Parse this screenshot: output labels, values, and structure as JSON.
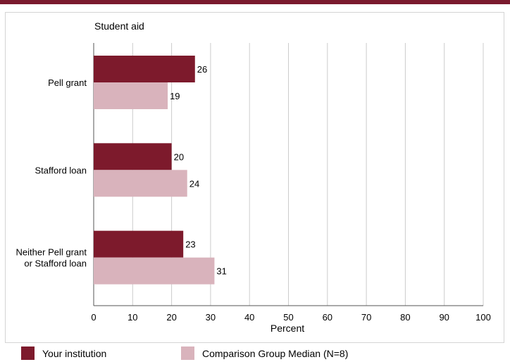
{
  "chart_data": {
    "type": "bar",
    "orientation": "horizontal",
    "title": "Student aid",
    "xlabel": "Percent",
    "ylabel": "",
    "xlim": [
      0,
      100
    ],
    "xticks": [
      "0",
      "10",
      "20",
      "30",
      "40",
      "50",
      "60",
      "70",
      "80",
      "90",
      "100"
    ],
    "grid": true,
    "categories": [
      "Pell grant",
      "Stafford loan",
      "Neither Pell grant\nor Stafford loan"
    ],
    "series": [
      {
        "name": "Your institution",
        "color": "#7d1a2c",
        "values": [
          26,
          20,
          23
        ]
      },
      {
        "name": "Comparison Group Median (N=8)",
        "color": "#d9b3bc",
        "values": [
          19,
          24,
          31
        ]
      }
    ],
    "legend_position": "bottom"
  },
  "colors": {
    "accent": "#7a1a2e"
  }
}
